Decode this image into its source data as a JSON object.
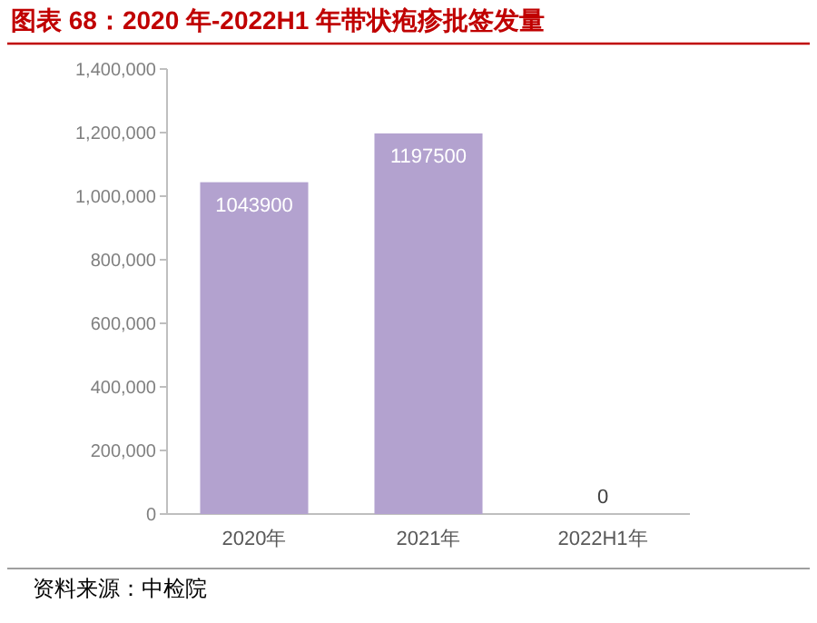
{
  "chart_data": {
    "type": "bar",
    "title": "图表 68：2020 年-2022H1 年带状疱疹批签发量",
    "categories": [
      "2020年",
      "2021年",
      "2022H1年"
    ],
    "values": [
      1043900,
      1197500,
      0
    ],
    "color": "#b3a2cf",
    "ylim": [
      0,
      1400000
    ],
    "yticks": [
      {
        "value": 0,
        "label": "0"
      },
      {
        "value": 200000,
        "label": "200,000"
      },
      {
        "value": 400000,
        "label": "400,000"
      },
      {
        "value": 600000,
        "label": "600,000"
      },
      {
        "value": 800000,
        "label": "800,000"
      },
      {
        "value": 1000000,
        "label": "1,000,000"
      },
      {
        "value": 1200000,
        "label": "1,200,000"
      },
      {
        "value": 1400000,
        "label": "1,400,000"
      }
    ],
    "data_labels": true,
    "annotations": [
      "资料来源：中检院"
    ]
  }
}
